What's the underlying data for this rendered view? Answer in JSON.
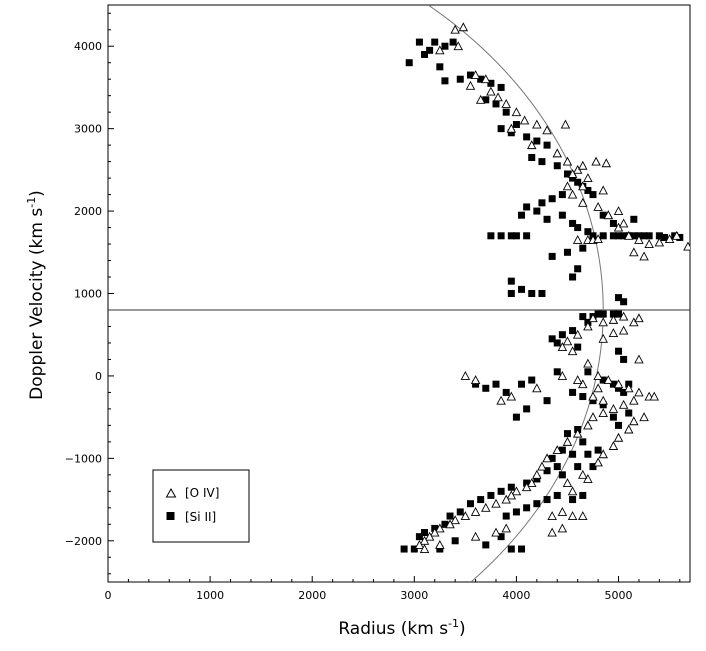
{
  "chart_data": {
    "type": "scatter",
    "title": "",
    "xlabel": "Radius (km s",
    "xlabel_sup": "-1",
    "xlabel_close": ")",
    "ylabel": "Doppler Velocity (km s",
    "ylabel_sup": "-1",
    "ylabel_close": ")",
    "xlim": [
      0,
      5700
    ],
    "ylim": [
      -2500,
      4500
    ],
    "xticks": [
      0,
      1000,
      2000,
      3000,
      4000,
      5000
    ],
    "yticks": [
      -2000,
      -1000,
      0,
      1000,
      2000,
      3000,
      4000
    ],
    "grid": false,
    "legend_position": "lower-left",
    "horizontal_line_y": 800,
    "model_curve": {
      "shape": "circle",
      "center_velocity": 800,
      "radius": 4850
    },
    "series": [
      {
        "name": "[O IV]",
        "marker": "open-triangle",
        "points": [
          [
            3400,
            4200
          ],
          [
            3480,
            4230
          ],
          [
            3430,
            4000
          ],
          [
            3250,
            3950
          ],
          [
            3600,
            3650
          ],
          [
            3700,
            3600
          ],
          [
            3550,
            3520
          ],
          [
            3650,
            3350
          ],
          [
            3750,
            3450
          ],
          [
            3820,
            3380
          ],
          [
            3900,
            3300
          ],
          [
            4000,
            3200
          ],
          [
            4080,
            3100
          ],
          [
            4200,
            3050
          ],
          [
            4300,
            2980
          ],
          [
            4480,
            3050
          ],
          [
            3950,
            3000
          ],
          [
            4150,
            2800
          ],
          [
            4400,
            2700
          ],
          [
            4500,
            2600
          ],
          [
            4600,
            2500
          ],
          [
            4650,
            2550
          ],
          [
            4700,
            2400
          ],
          [
            4780,
            2600
          ],
          [
            4880,
            2580
          ],
          [
            4500,
            2300
          ],
          [
            4550,
            2200
          ],
          [
            4650,
            2100
          ],
          [
            4800,
            2050
          ],
          [
            4900,
            1950
          ],
          [
            5000,
            1800
          ],
          [
            5100,
            1700
          ],
          [
            5200,
            1650
          ],
          [
            5300,
            1600
          ],
          [
            5400,
            1620
          ],
          [
            5500,
            1660
          ],
          [
            5570,
            1700
          ],
          [
            5680,
            1570
          ],
          [
            5150,
            1500
          ],
          [
            5250,
            1450
          ],
          [
            4600,
            1650
          ],
          [
            4700,
            1650
          ],
          [
            4750,
            1650
          ],
          [
            4800,
            1660
          ],
          [
            4900,
            1950
          ],
          [
            5050,
            1850
          ],
          [
            5000,
            2000
          ],
          [
            4850,
            2250
          ],
          [
            4650,
            2300
          ],
          [
            4550,
            2450
          ],
          [
            4700,
            600
          ],
          [
            4750,
            700
          ],
          [
            4850,
            650
          ],
          [
            4950,
            680
          ],
          [
            5050,
            720
          ],
          [
            5150,
            650
          ],
          [
            5200,
            700
          ],
          [
            5050,
            550
          ],
          [
            4950,
            520
          ],
          [
            4850,
            450
          ],
          [
            4600,
            500
          ],
          [
            4500,
            420
          ],
          [
            4450,
            350
          ],
          [
            4550,
            300
          ],
          [
            4700,
            150
          ],
          [
            4800,
            0
          ],
          [
            4900,
            -50
          ],
          [
            5000,
            -100
          ],
          [
            5100,
            -150
          ],
          [
            5200,
            -200
          ],
          [
            5300,
            -250
          ],
          [
            5150,
            -300
          ],
          [
            5050,
            -350
          ],
          [
            4950,
            -400
          ],
          [
            4850,
            -450
          ],
          [
            4750,
            -500
          ],
          [
            4700,
            -600
          ],
          [
            4600,
            -700
          ],
          [
            4500,
            -800
          ],
          [
            4400,
            -900
          ],
          [
            4300,
            -1000
          ],
          [
            4250,
            -1100
          ],
          [
            4200,
            -1200
          ],
          [
            4150,
            -1300
          ],
          [
            4100,
            -1350
          ],
          [
            4000,
            -1400
          ],
          [
            3950,
            -1450
          ],
          [
            3900,
            -1500
          ],
          [
            3800,
            -1550
          ],
          [
            3700,
            -1600
          ],
          [
            3600,
            -1650
          ],
          [
            3500,
            -1700
          ],
          [
            3400,
            -1750
          ],
          [
            3350,
            -1800
          ],
          [
            3250,
            -1850
          ],
          [
            3200,
            -1900
          ],
          [
            3150,
            -1950
          ],
          [
            3100,
            -2000
          ],
          [
            3050,
            -2050
          ],
          [
            3100,
            -2100
          ],
          [
            3250,
            -2050
          ],
          [
            3600,
            -1950
          ],
          [
            3800,
            -1900
          ],
          [
            3900,
            -1850
          ],
          [
            4350,
            -1900
          ],
          [
            4450,
            -1850
          ],
          [
            4350,
            -1700
          ],
          [
            4450,
            -1650
          ],
          [
            4550,
            -1700
          ],
          [
            4650,
            -1700
          ],
          [
            4500,
            -1300
          ],
          [
            4550,
            -1400
          ],
          [
            4700,
            -1250
          ],
          [
            4650,
            -1200
          ],
          [
            4800,
            -1050
          ],
          [
            4850,
            -950
          ],
          [
            4950,
            -850
          ],
          [
            5000,
            -750
          ],
          [
            5100,
            -650
          ],
          [
            5150,
            -550
          ],
          [
            5250,
            -500
          ],
          [
            5350,
            -250
          ],
          [
            4850,
            -300
          ],
          [
            4750,
            -250
          ],
          [
            4800,
            -150
          ],
          [
            4650,
            -100
          ],
          [
            4600,
            -50
          ],
          [
            4450,
            0
          ],
          [
            4200,
            -150
          ],
          [
            3950,
            -250
          ],
          [
            3850,
            -300
          ],
          [
            3600,
            -50
          ],
          [
            3500,
            0
          ],
          [
            5200,
            200
          ]
        ]
      },
      {
        "name": "[Si II]",
        "marker": "filled-square",
        "points": [
          [
            3050,
            4050
          ],
          [
            3150,
            3950
          ],
          [
            3200,
            4050
          ],
          [
            3300,
            4000
          ],
          [
            3380,
            4050
          ],
          [
            2950,
            3800
          ],
          [
            3100,
            3900
          ],
          [
            3250,
            3750
          ],
          [
            3300,
            3580
          ],
          [
            3450,
            3600
          ],
          [
            3550,
            3650
          ],
          [
            3650,
            3600
          ],
          [
            3750,
            3550
          ],
          [
            3850,
            3500
          ],
          [
            3700,
            3350
          ],
          [
            3800,
            3300
          ],
          [
            3900,
            3200
          ],
          [
            4000,
            3050
          ],
          [
            3850,
            3000
          ],
          [
            3950,
            2950
          ],
          [
            4100,
            2900
          ],
          [
            4200,
            2850
          ],
          [
            4300,
            2800
          ],
          [
            4150,
            2650
          ],
          [
            4250,
            2600
          ],
          [
            4400,
            2550
          ],
          [
            4500,
            2450
          ],
          [
            4550,
            2400
          ],
          [
            4600,
            2350
          ],
          [
            4650,
            2300
          ],
          [
            4700,
            2250
          ],
          [
            4750,
            2200
          ],
          [
            4450,
            2200
          ],
          [
            4350,
            2150
          ],
          [
            4250,
            2100
          ],
          [
            4200,
            2000
          ],
          [
            4100,
            2050
          ],
          [
            4050,
            1950
          ],
          [
            4300,
            1900
          ],
          [
            4450,
            1950
          ],
          [
            4550,
            1850
          ],
          [
            4600,
            1800
          ],
          [
            4700,
            1750
          ],
          [
            4750,
            1700
          ],
          [
            4850,
            1700
          ],
          [
            4950,
            1700
          ],
          [
            5000,
            1700
          ],
          [
            5050,
            1700
          ],
          [
            5100,
            1700
          ],
          [
            5150,
            1700
          ],
          [
            5200,
            1700
          ],
          [
            5250,
            1700
          ],
          [
            5300,
            1700
          ],
          [
            5400,
            1700
          ],
          [
            5450,
            1680
          ],
          [
            5550,
            1700
          ],
          [
            5600,
            1680
          ],
          [
            5150,
            1900
          ],
          [
            4950,
            1850
          ],
          [
            4850,
            1950
          ],
          [
            4650,
            1550
          ],
          [
            4500,
            1500
          ],
          [
            4350,
            1450
          ],
          [
            3750,
            1700
          ],
          [
            3850,
            1700
          ],
          [
            3950,
            1700
          ],
          [
            4100,
            1700
          ],
          [
            4000,
            1700
          ],
          [
            4600,
            1300
          ],
          [
            4550,
            1200
          ],
          [
            3950,
            1150
          ],
          [
            4050,
            1050
          ],
          [
            4150,
            1000
          ],
          [
            4250,
            1000
          ],
          [
            3950,
            1000
          ],
          [
            5000,
            950
          ],
          [
            5050,
            900
          ],
          [
            4800,
            750
          ],
          [
            4750,
            720
          ],
          [
            4650,
            720
          ],
          [
            4700,
            650
          ],
          [
            4850,
            750
          ],
          [
            4950,
            750
          ],
          [
            5000,
            750
          ],
          [
            4550,
            550
          ],
          [
            4450,
            500
          ],
          [
            4350,
            450
          ],
          [
            4400,
            400
          ],
          [
            4600,
            350
          ],
          [
            5000,
            300
          ],
          [
            5050,
            200
          ],
          [
            4400,
            50
          ],
          [
            4700,
            50
          ],
          [
            4850,
            -50
          ],
          [
            4950,
            -100
          ],
          [
            5000,
            -150
          ],
          [
            5050,
            -200
          ],
          [
            5100,
            -100
          ],
          [
            4550,
            -200
          ],
          [
            4650,
            -250
          ],
          [
            4750,
            -300
          ],
          [
            4850,
            -350
          ],
          [
            5100,
            -450
          ],
          [
            4950,
            -500
          ],
          [
            5000,
            -600
          ],
          [
            4600,
            -650
          ],
          [
            4500,
            -700
          ],
          [
            4650,
            -800
          ],
          [
            4450,
            -900
          ],
          [
            4550,
            -950
          ],
          [
            4350,
            -1000
          ],
          [
            4400,
            -1100
          ],
          [
            4300,
            -1150
          ],
          [
            4450,
            -1200
          ],
          [
            4200,
            -1250
          ],
          [
            4100,
            -1300
          ],
          [
            3950,
            -1350
          ],
          [
            3850,
            -1400
          ],
          [
            3750,
            -1450
          ],
          [
            3650,
            -1500
          ],
          [
            3550,
            -1550
          ],
          [
            3450,
            -1650
          ],
          [
            3350,
            -1700
          ],
          [
            3300,
            -1800
          ],
          [
            3200,
            -1850
          ],
          [
            3100,
            -1900
          ],
          [
            3050,
            -1950
          ],
          [
            3000,
            -2100
          ],
          [
            2900,
            -2100
          ],
          [
            3250,
            -2100
          ],
          [
            3400,
            -2000
          ],
          [
            3700,
            -2050
          ],
          [
            3950,
            -2100
          ],
          [
            4050,
            -2100
          ],
          [
            3850,
            -1950
          ],
          [
            3900,
            -1700
          ],
          [
            4000,
            -1650
          ],
          [
            4100,
            -1600
          ],
          [
            4200,
            -1550
          ],
          [
            4300,
            -1500
          ],
          [
            4400,
            -1450
          ],
          [
            4550,
            -1500
          ],
          [
            4650,
            -1450
          ],
          [
            4600,
            -1100
          ],
          [
            4750,
            -1100
          ],
          [
            4800,
            -900
          ],
          [
            4700,
            -950
          ],
          [
            3600,
            -100
          ],
          [
            3700,
            -150
          ],
          [
            3800,
            -100
          ],
          [
            3900,
            -200
          ],
          [
            4050,
            -100
          ],
          [
            4150,
            -50
          ],
          [
            4000,
            -500
          ],
          [
            4100,
            -400
          ],
          [
            4300,
            -300
          ]
        ]
      }
    ]
  }
}
